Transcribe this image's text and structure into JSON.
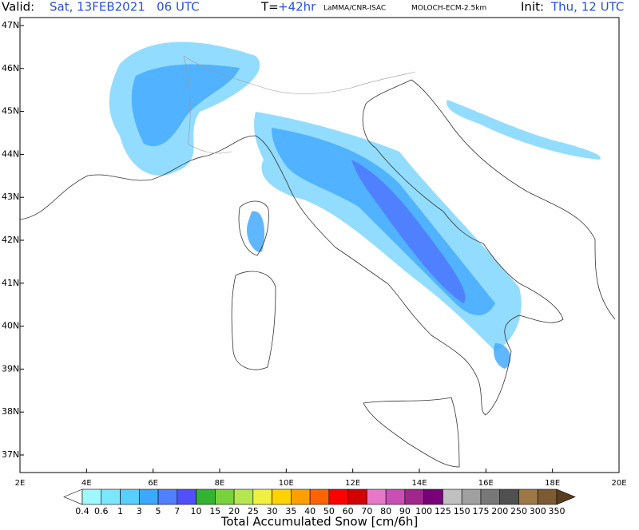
{
  "header": {
    "valid_label": "Valid:",
    "valid_value": "Sat, 13FEB2021   06 UTC",
    "t_label": "T=",
    "t_value": "+42hr",
    "source": "LaMMA/CNR-ISAC",
    "model": "MOLOCH-ECM-2.5km",
    "init_label": "Init:",
    "init_value": "Thu, 12 UTC"
  },
  "map": {
    "lat_labels": [
      "47N",
      "46N",
      "45N",
      "44N",
      "43N",
      "42N",
      "41N",
      "40N",
      "39N",
      "38N",
      "37N"
    ],
    "lon_labels": [
      "2E",
      "4E",
      "6E",
      "8E",
      "10E",
      "12E",
      "14E",
      "16E",
      "18E",
      "20E"
    ]
  },
  "colorbar": {
    "levels": [
      "0.4",
      "0.6",
      "1",
      "3",
      "5",
      "7",
      "10",
      "15",
      "20",
      "25",
      "30",
      "35",
      "40",
      "50",
      "60",
      "70",
      "80",
      "90",
      "100",
      "125",
      "150",
      "175",
      "200",
      "250",
      "300",
      "350"
    ],
    "colors": [
      "#ffffff",
      "#9ff7ff",
      "#7ae7ff",
      "#59cfff",
      "#3ca9ff",
      "#4f80ff",
      "#5050ff",
      "#32b432",
      "#78d23c",
      "#b4e650",
      "#f0f040",
      "#ffd200",
      "#ffa000",
      "#ff6400",
      "#ff0000",
      "#d20000",
      "#e678c8",
      "#c850b4",
      "#a0288c",
      "#780078",
      "#c0c0c0",
      "#a0a0a0",
      "#787878",
      "#505050",
      "#9b7846",
      "#7d5a32",
      "#5a3c1e"
    ],
    "title": "Total Accumulated Snow [cm/6h]"
  }
}
